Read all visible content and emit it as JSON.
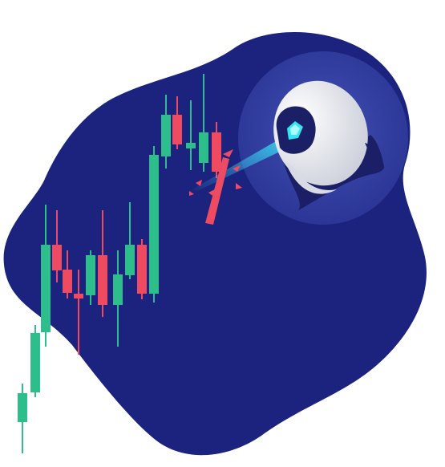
{
  "illustration": {
    "subject": "robot-eye-laser-candlestick-chart",
    "colors": {
      "blob": "#1B237E",
      "halo": "#2E3A9C",
      "bull": "#2DBE8C",
      "bear": "#EE4B63",
      "robot_shell": "#F2F3F7",
      "robot_dark": "#1A1F66",
      "lens": "#35E5F2",
      "laser": "#3FB7F0"
    },
    "icons": [
      "robot-head-icon",
      "laser-beam-icon",
      "candlestick-chart-icon"
    ]
  }
}
